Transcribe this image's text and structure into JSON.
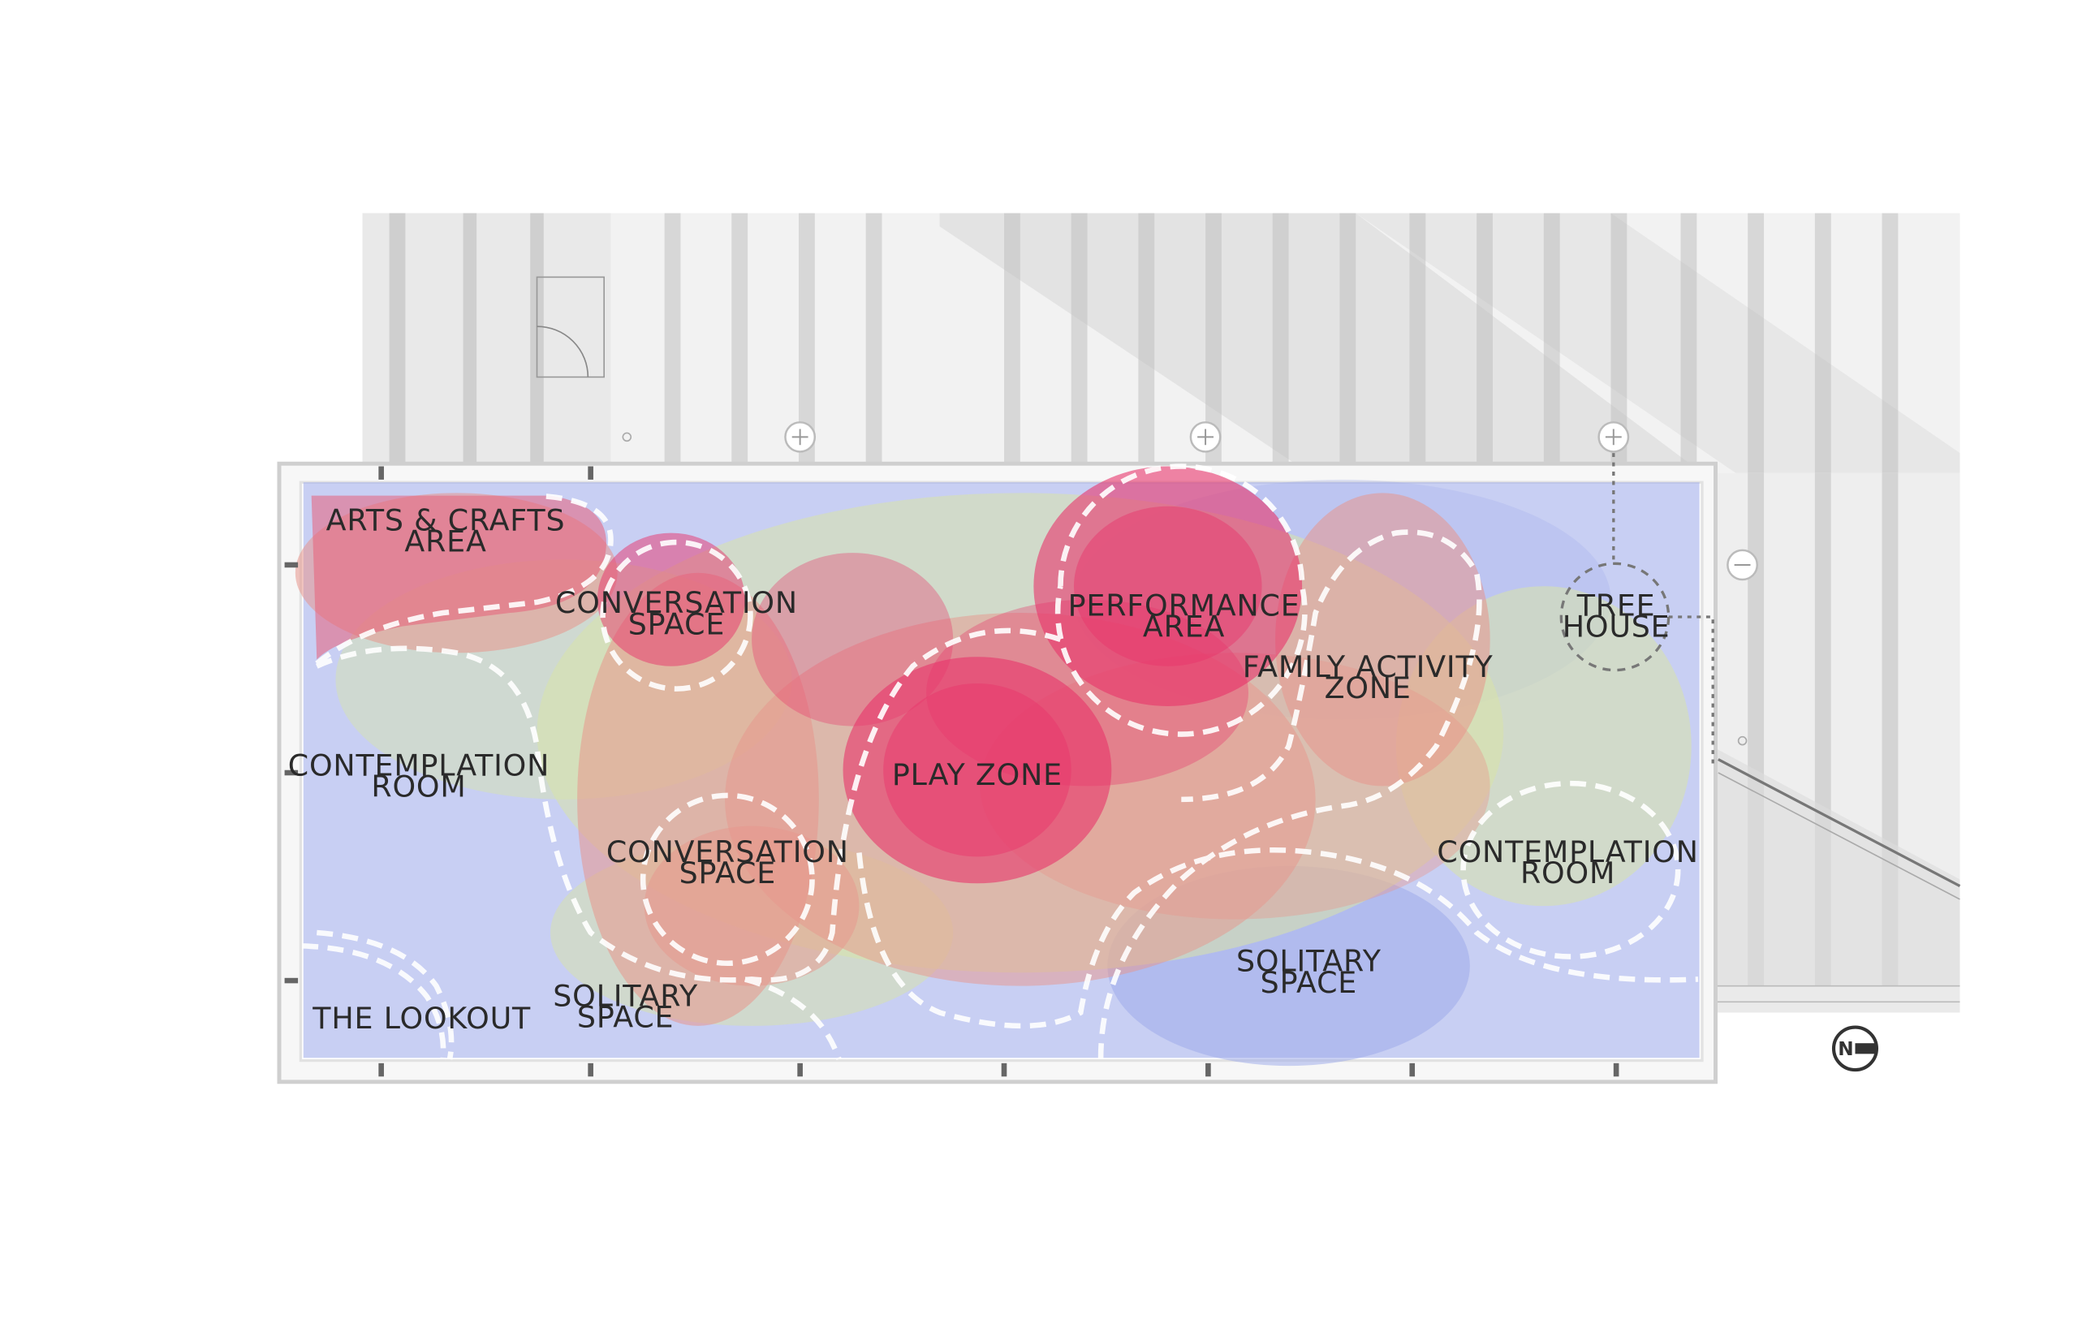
{
  "diagram": {
    "zones": {
      "arts_crafts": [
        "ARTS & CRAFTS",
        "AREA"
      ],
      "conversation_top": [
        "CONVERSATION",
        "SPACE"
      ],
      "performance": [
        "PERFORMANCE",
        "AREA"
      ],
      "tree_house": [
        "TREE",
        "HOUSE"
      ],
      "family_activity": [
        "FAMILY ACTIVITY",
        "ZONE"
      ],
      "contemplation_left": [
        "CONTEMPLATION",
        "ROOM"
      ],
      "play_zone": [
        "PLAY ZONE"
      ],
      "conversation_bottom": [
        "CONVERSATION",
        "SPACE"
      ],
      "contemplation_right": [
        "CONTEMPLATION",
        "ROOM"
      ],
      "solitary_right": [
        "SOLITARY",
        "SPACE"
      ],
      "solitary_left": [
        "SOLITARY",
        "SPACE"
      ],
      "lookout": [
        "THE LOOKOUT"
      ]
    },
    "compass": {
      "letter": "N"
    },
    "colors": {
      "hotspot": "#e8336b",
      "warm_mid": "#e58a8a",
      "green_tint": "#c8dca0",
      "blue_tint": "#9aa8ea",
      "gray_block": "#d6d6d6",
      "light_gray": "#ececec"
    }
  }
}
